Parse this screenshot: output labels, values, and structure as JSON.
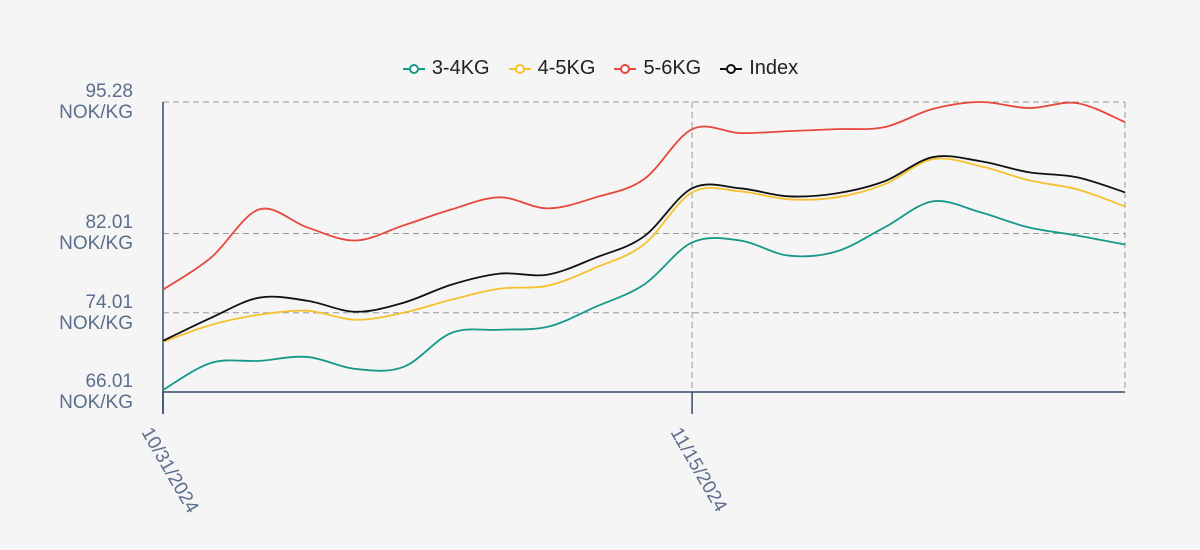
{
  "chart_data": {
    "type": "line",
    "categories": [
      "10/31/2024",
      null,
      null,
      null,
      null,
      null,
      null,
      null,
      null,
      null,
      null,
      "11/15/2024",
      null,
      null,
      null,
      null,
      null,
      null,
      null,
      null,
      null
    ],
    "series": [
      {
        "name": "3-4KG",
        "color": "#16998a",
        "values": [
          66.21,
          68.95,
          69.15,
          69.55,
          68.34,
          68.54,
          71.98,
          72.29,
          72.59,
          74.62,
          76.85,
          81.1,
          81.3,
          79.78,
          80.19,
          82.62,
          85.25,
          84.14,
          82.62,
          81.81,
          80.9
        ]
      },
      {
        "name": "4-5KG",
        "color": "#f6c12c",
        "values": [
          71.07,
          72.79,
          73.81,
          74.21,
          73.3,
          74.01,
          75.33,
          76.44,
          76.74,
          78.57,
          80.9,
          86.16,
          86.26,
          85.46,
          85.66,
          86.97,
          89.5,
          88.8,
          87.38,
          86.47,
          84.74
        ]
      },
      {
        "name": "5-6KG",
        "color": "#e8473b",
        "values": [
          76.34,
          79.58,
          84.44,
          82.62,
          81.3,
          82.82,
          84.44,
          85.66,
          84.54,
          85.66,
          87.48,
          92.54,
          92.14,
          92.34,
          92.54,
          92.74,
          94.57,
          95.28,
          94.67,
          95.17,
          93.25
        ]
      },
      {
        "name": "Index",
        "color": "#111111",
        "values": [
          71.17,
          73.5,
          75.53,
          75.22,
          74.11,
          75.02,
          76.85,
          77.96,
          77.86,
          79.58,
          81.71,
          86.57,
          86.57,
          85.76,
          86.06,
          87.28,
          89.71,
          89.3,
          88.19,
          87.68,
          86.16
        ]
      }
    ],
    "ylim": [
      66.01,
      95.28
    ],
    "yticks": [
      {
        "value": 66.01,
        "label": "66.01 NOK/KG"
      },
      {
        "value": 74.01,
        "label": "74.01 NOK/KG"
      },
      {
        "value": 82.01,
        "label": "82.01 NOK/KG"
      },
      {
        "value": 95.28,
        "label": "95.28 NOK/KG"
      }
    ],
    "grid": true,
    "legend": "top"
  }
}
